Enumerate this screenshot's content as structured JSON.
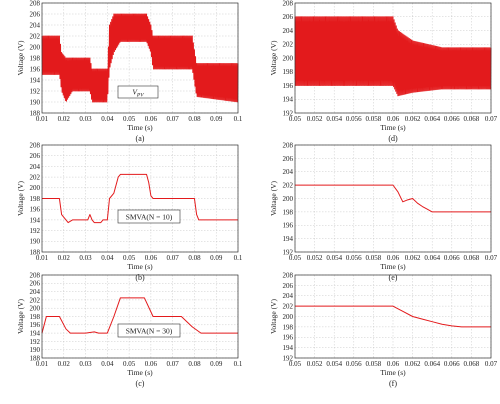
{
  "colors": {
    "trace": "#e31a1c"
  },
  "chart_data": [
    {
      "id": "a",
      "type": "line",
      "caption": "(a)",
      "xlabel": "Time (s)",
      "ylabel": "Voltage (V)",
      "xlim": [
        0.01,
        0.1
      ],
      "ylim": [
        188,
        208
      ],
      "xticks": [
        "0.01",
        "0.02",
        "0.03",
        "0.04",
        "0.05",
        "0.06",
        "0.07",
        "0.08",
        "0.09",
        "0.1"
      ],
      "yticks": [
        "188",
        "190",
        "192",
        "194",
        "196",
        "198",
        "200",
        "202",
        "204",
        "206",
        "208"
      ],
      "grid": true,
      "annotation": "V_PV",
      "style": "band",
      "bands": [
        {
          "x": 0.01,
          "lo": 195,
          "hi": 202
        },
        {
          "x": 0.018,
          "lo": 195,
          "hi": 202
        },
        {
          "x": 0.019,
          "lo": 192,
          "hi": 199
        },
        {
          "x": 0.021,
          "lo": 190,
          "hi": 198
        },
        {
          "x": 0.024,
          "lo": 192,
          "hi": 198
        },
        {
          "x": 0.032,
          "lo": 192,
          "hi": 198
        },
        {
          "x": 0.033,
          "lo": 190,
          "hi": 196
        },
        {
          "x": 0.04,
          "lo": 190,
          "hi": 196
        },
        {
          "x": 0.041,
          "lo": 196,
          "hi": 204
        },
        {
          "x": 0.043,
          "lo": 199,
          "hi": 206
        },
        {
          "x": 0.046,
          "lo": 201,
          "hi": 206
        },
        {
          "x": 0.058,
          "lo": 201,
          "hi": 206
        },
        {
          "x": 0.06,
          "lo": 199,
          "hi": 204
        },
        {
          "x": 0.061,
          "lo": 196,
          "hi": 202
        },
        {
          "x": 0.079,
          "lo": 196,
          "hi": 202
        },
        {
          "x": 0.081,
          "lo": 191,
          "hi": 197
        },
        {
          "x": 0.1,
          "lo": 190,
          "hi": 197
        }
      ]
    },
    {
      "id": "d",
      "type": "line",
      "caption": "(d)",
      "xlabel": "Time (s)",
      "ylabel": "Voltage (V)",
      "xlim": [
        0.05,
        0.07
      ],
      "ylim": [
        192,
        208
      ],
      "xticks": [
        "0.05",
        "0.052",
        "0.054",
        "0.056",
        "0.058",
        "0.06",
        "0.062",
        "0.064",
        "0.066",
        "0.068",
        "0.07"
      ],
      "yticks": [
        "192",
        "194",
        "196",
        "198",
        "200",
        "202",
        "204",
        "206",
        "208"
      ],
      "grid": true,
      "style": "band",
      "bands": [
        {
          "x": 0.05,
          "lo": 196,
          "hi": 206
        },
        {
          "x": 0.06,
          "lo": 196,
          "hi": 206
        },
        {
          "x": 0.0605,
          "lo": 194.5,
          "hi": 204
        },
        {
          "x": 0.062,
          "lo": 195,
          "hi": 202.5
        },
        {
          "x": 0.065,
          "lo": 195.5,
          "hi": 201.5
        },
        {
          "x": 0.07,
          "lo": 195.5,
          "hi": 201.5
        }
      ]
    },
    {
      "id": "b",
      "type": "line",
      "caption": "(b)",
      "xlabel": "Time (s)",
      "ylabel": "Voltage (V)",
      "xlim": [
        0.01,
        0.1
      ],
      "ylim": [
        188,
        208
      ],
      "xticks": [
        "0.01",
        "0.02",
        "0.03",
        "0.04",
        "0.05",
        "0.06",
        "0.07",
        "0.08",
        "0.09",
        "0.1"
      ],
      "yticks": [
        "188",
        "190",
        "192",
        "194",
        "196",
        "198",
        "200",
        "202",
        "204",
        "206",
        "208"
      ],
      "grid": true,
      "annotation": "SMVA(N = 10)",
      "style": "line",
      "x": [
        0.01,
        0.018,
        0.019,
        0.022,
        0.024,
        0.031,
        0.032,
        0.033,
        0.034,
        0.037,
        0.038,
        0.04,
        0.041,
        0.043,
        0.045,
        0.046,
        0.058,
        0.059,
        0.06,
        0.061,
        0.08,
        0.081,
        0.082,
        0.1
      ],
      "y": [
        198,
        198,
        195,
        193.5,
        194,
        194,
        195,
        194,
        193.5,
        193.5,
        194,
        194,
        198,
        199,
        202,
        202.5,
        202.5,
        201,
        198.5,
        198,
        198,
        195,
        194,
        194
      ]
    },
    {
      "id": "e",
      "type": "line",
      "caption": "(e)",
      "xlabel": "Time (s)",
      "ylabel": "Voltage (V)",
      "xlim": [
        0.05,
        0.07
      ],
      "ylim": [
        192,
        208
      ],
      "xticks": [
        "0.05",
        "0.052",
        "0.054",
        "0.056",
        "0.058",
        "0.06",
        "0.062",
        "0.064",
        "0.066",
        "0.068",
        "0.07"
      ],
      "yticks": [
        "192",
        "194",
        "196",
        "198",
        "200",
        "202",
        "204",
        "206",
        "208"
      ],
      "grid": true,
      "style": "line",
      "x": [
        0.05,
        0.06,
        0.0605,
        0.061,
        0.0615,
        0.062,
        0.0625,
        0.063,
        0.0635,
        0.064,
        0.065,
        0.07
      ],
      "y": [
        202,
        202,
        201,
        199.5,
        199.8,
        200,
        199.3,
        198.8,
        198.4,
        198,
        198,
        198
      ]
    },
    {
      "id": "c",
      "type": "line",
      "caption": "(c)",
      "xlabel": "Time (s)",
      "ylabel": "Voltage (V)",
      "xlim": [
        0.01,
        0.1
      ],
      "ylim": [
        188,
        208
      ],
      "xticks": [
        "0.01",
        "0.02",
        "0.03",
        "0.04",
        "0.05",
        "0.06",
        "0.07",
        "0.08",
        "0.09",
        "0.1"
      ],
      "yticks": [
        "188",
        "190",
        "192",
        "194",
        "196",
        "198",
        "200",
        "202",
        "204",
        "206",
        "208"
      ],
      "grid": true,
      "annotation": "SMVA(N = 30)",
      "style": "line",
      "x": [
        0.01,
        0.012,
        0.018,
        0.021,
        0.023,
        0.03,
        0.034,
        0.036,
        0.04,
        0.043,
        0.046,
        0.057,
        0.061,
        0.074,
        0.079,
        0.083,
        0.1
      ],
      "y": [
        194,
        198,
        198,
        195,
        194,
        194,
        194.3,
        194,
        194,
        198,
        202.5,
        202.5,
        198,
        198,
        195.5,
        194,
        194
      ]
    },
    {
      "id": "f",
      "type": "line",
      "caption": "(f)",
      "xlabel": "Time (s)",
      "ylabel": "Voltage (V)",
      "xlim": [
        0.05,
        0.07
      ],
      "ylim": [
        192,
        208
      ],
      "xticks": [
        "0.05",
        "0.052",
        "0.054",
        "0.056",
        "0.058",
        "0.06",
        "0.062",
        "0.064",
        "0.066",
        "0.068",
        "0.07"
      ],
      "yticks": [
        "192",
        "194",
        "196",
        "198",
        "200",
        "202",
        "204",
        "206",
        "208"
      ],
      "grid": true,
      "style": "line",
      "x": [
        0.05,
        0.06,
        0.061,
        0.062,
        0.063,
        0.064,
        0.065,
        0.066,
        0.067,
        0.07
      ],
      "y": [
        202,
        202,
        201,
        200,
        199.5,
        199,
        198.5,
        198.2,
        198,
        198
      ]
    }
  ]
}
